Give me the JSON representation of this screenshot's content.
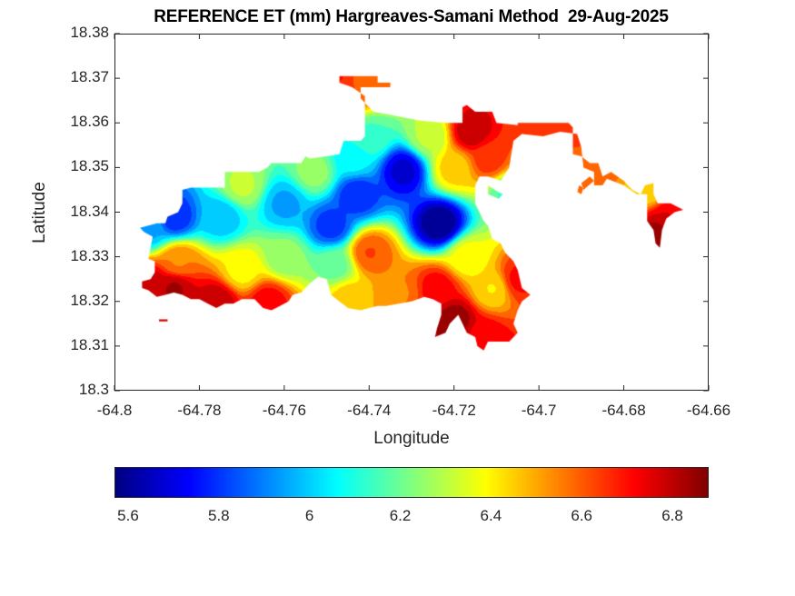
{
  "chart_data": {
    "type": "heatmap",
    "title": "REFERENCE ET (mm) Hargreaves-Samani Method  29-Aug-2025",
    "xlabel": "Longitude",
    "ylabel": "Latitude",
    "xlim": [
      -64.8,
      -64.66
    ],
    "ylim": [
      18.3,
      18.38
    ],
    "xticks": [
      -64.8,
      -64.78,
      -64.76,
      -64.74,
      -64.72,
      -64.7,
      -64.68,
      -64.66
    ],
    "xtick_labels": [
      "-64.8",
      "-64.78",
      "-64.76",
      "-64.74",
      "-64.72",
      "-64.7",
      "-64.68",
      "-64.66"
    ],
    "yticks": [
      18.3,
      18.31,
      18.32,
      18.33,
      18.34,
      18.35,
      18.36,
      18.37,
      18.38
    ],
    "ytick_labels": [
      "18.3",
      "18.31",
      "18.32",
      "18.33",
      "18.34",
      "18.35",
      "18.36",
      "18.37",
      "18.38"
    ],
    "grid": false,
    "colormap": "jet",
    "colorbar": {
      "location": "bottom",
      "clim": [
        5.57,
        6.88
      ],
      "ticks": [
        5.6,
        5.8,
        6.0,
        6.2,
        6.4,
        6.6,
        6.8
      ],
      "tick_labels": [
        "5.6",
        "5.8",
        "6",
        "6.2",
        "6.4",
        "6.6",
        "6.8"
      ]
    },
    "value_field_anchors": [
      {
        "lon": -64.7235,
        "lat": 18.3375,
        "value": 5.58
      },
      {
        "lon": -64.732,
        "lat": 18.3495,
        "value": 5.68
      },
      {
        "lon": -64.743,
        "lat": 18.344,
        "value": 5.78
      },
      {
        "lon": -64.749,
        "lat": 18.337,
        "value": 5.8
      },
      {
        "lon": -64.76,
        "lat": 18.342,
        "value": 5.95
      },
      {
        "lon": -64.775,
        "lat": 18.339,
        "value": 5.98
      },
      {
        "lon": -64.786,
        "lat": 18.339,
        "value": 5.78
      },
      {
        "lon": -64.792,
        "lat": 18.3365,
        "value": 5.95
      },
      {
        "lon": -64.77,
        "lat": 18.346,
        "value": 6.3
      },
      {
        "lon": -64.753,
        "lat": 18.349,
        "value": 6.25
      },
      {
        "lon": -64.74,
        "lat": 18.357,
        "value": 6.15
      },
      {
        "lon": -64.726,
        "lat": 18.357,
        "value": 6.3
      },
      {
        "lon": -64.744,
        "lat": 18.352,
        "value": 6.05
      },
      {
        "lon": -64.74,
        "lat": 18.331,
        "value": 6.62
      },
      {
        "lon": -64.748,
        "lat": 18.328,
        "value": 6.2
      },
      {
        "lon": -64.76,
        "lat": 18.33,
        "value": 6.25
      },
      {
        "lon": -64.77,
        "lat": 18.327,
        "value": 6.4
      },
      {
        "lon": -64.785,
        "lat": 18.329,
        "value": 6.55
      },
      {
        "lon": -64.786,
        "lat": 18.323,
        "value": 6.82
      },
      {
        "lon": -64.776,
        "lat": 18.32,
        "value": 6.8
      },
      {
        "lon": -64.792,
        "lat": 18.324,
        "value": 6.8
      },
      {
        "lon": -64.764,
        "lat": 18.32,
        "value": 6.72
      },
      {
        "lon": -64.745,
        "lat": 18.321,
        "value": 6.45
      },
      {
        "lon": -64.733,
        "lat": 18.322,
        "value": 6.55
      },
      {
        "lon": -64.724,
        "lat": 18.323,
        "value": 6.72
      },
      {
        "lon": -64.72,
        "lat": 18.316,
        "value": 6.85
      },
      {
        "lon": -64.713,
        "lat": 18.312,
        "value": 6.72
      },
      {
        "lon": -64.711,
        "lat": 18.323,
        "value": 6.42
      },
      {
        "lon": -64.705,
        "lat": 18.325,
        "value": 6.7
      },
      {
        "lon": -64.717,
        "lat": 18.33,
        "value": 6.38
      },
      {
        "lon": -64.716,
        "lat": 18.358,
        "value": 6.8
      },
      {
        "lon": -64.712,
        "lat": 18.352,
        "value": 6.65
      },
      {
        "lon": -64.72,
        "lat": 18.35,
        "value": 6.45
      },
      {
        "lon": -64.707,
        "lat": 18.344,
        "value": 6.15
      },
      {
        "lon": -64.7,
        "lat": 18.359,
        "value": 6.65
      },
      {
        "lon": -64.691,
        "lat": 18.358,
        "value": 6.62
      },
      {
        "lon": -64.684,
        "lat": 18.35,
        "value": 6.58
      },
      {
        "lon": -64.677,
        "lat": 18.346,
        "value": 6.48
      },
      {
        "lon": -64.674,
        "lat": 18.345,
        "value": 6.42
      },
      {
        "lon": -64.67,
        "lat": 18.339,
        "value": 6.75
      },
      {
        "lon": -64.666,
        "lat": 18.341,
        "value": 6.72
      },
      {
        "lon": -64.672,
        "lat": 18.336,
        "value": 6.84
      },
      {
        "lon": -64.746,
        "lat": 18.368,
        "value": 6.65
      },
      {
        "lon": -64.742,
        "lat": 18.369,
        "value": 6.6
      },
      {
        "lon": -64.748,
        "lat": 18.37,
        "value": 6.7
      },
      {
        "lon": -64.788,
        "lat": 18.316,
        "value": 6.8
      }
    ],
    "region_outline_lonlat": [
      [
        -64.747,
        18.3705
      ],
      [
        -64.738,
        18.3705
      ],
      [
        -64.738,
        18.369
      ],
      [
        -64.735,
        18.369
      ],
      [
        -64.735,
        18.368
      ],
      [
        -64.742,
        18.368
      ],
      [
        -64.742,
        18.3655
      ],
      [
        -64.739,
        18.3625
      ],
      [
        -64.736,
        18.362
      ],
      [
        -64.728,
        18.3605
      ],
      [
        -64.722,
        18.36
      ],
      [
        -64.718,
        18.36
      ],
      [
        -64.718,
        18.3635
      ],
      [
        -64.717,
        18.364
      ],
      [
        -64.715,
        18.3625
      ],
      [
        -64.711,
        18.3625
      ],
      [
        -64.71,
        18.36
      ],
      [
        -64.705,
        18.3595
      ],
      [
        -64.705,
        18.36
      ],
      [
        -64.699,
        18.36
      ],
      [
        -64.693,
        18.36
      ],
      [
        -64.692,
        18.359
      ],
      [
        -64.692,
        18.353
      ],
      [
        -64.69,
        18.3525
      ],
      [
        -64.688,
        18.351
      ],
      [
        -64.686,
        18.351
      ],
      [
        -64.685,
        18.348
      ],
      [
        -64.683,
        18.349
      ],
      [
        -64.68,
        18.347
      ],
      [
        -64.678,
        18.345
      ],
      [
        -64.676,
        18.344
      ],
      [
        -64.675,
        18.346
      ],
      [
        -64.673,
        18.3465
      ],
      [
        -64.673,
        18.344
      ],
      [
        -64.672,
        18.342
      ],
      [
        -64.669,
        18.342
      ],
      [
        -64.667,
        18.341
      ],
      [
        -64.666,
        18.3405
      ],
      [
        -64.668,
        18.34
      ],
      [
        -64.67,
        18.3385
      ],
      [
        -64.671,
        18.336
      ],
      [
        -64.6715,
        18.332
      ],
      [
        -64.6725,
        18.333
      ],
      [
        -64.673,
        18.336
      ],
      [
        -64.6745,
        18.338
      ],
      [
        -64.6745,
        18.344
      ],
      [
        -64.677,
        18.344
      ],
      [
        -64.68,
        18.346
      ],
      [
        -64.684,
        18.3475
      ],
      [
        -64.685,
        18.346
      ],
      [
        -64.687,
        18.346
      ],
      [
        -64.687,
        18.349
      ],
      [
        -64.6895,
        18.35
      ],
      [
        -64.69,
        18.3545
      ],
      [
        -64.691,
        18.3575
      ],
      [
        -64.695,
        18.358
      ],
      [
        -64.699,
        18.357
      ],
      [
        -64.704,
        18.3575
      ],
      [
        -64.706,
        18.356
      ],
      [
        -64.707,
        18.35
      ],
      [
        -64.709,
        18.347
      ],
      [
        -64.712,
        18.348
      ],
      [
        -64.714,
        18.348
      ],
      [
        -64.715,
        18.346
      ],
      [
        -64.715,
        18.342
      ],
      [
        -64.714,
        18.34
      ],
      [
        -64.713,
        18.338
      ],
      [
        -64.712,
        18.337
      ],
      [
        -64.711,
        18.334
      ],
      [
        -64.709,
        18.333
      ],
      [
        -64.708,
        18.331
      ],
      [
        -64.706,
        18.329
      ],
      [
        -64.705,
        18.327
      ],
      [
        -64.704,
        18.323
      ],
      [
        -64.702,
        18.3215
      ],
      [
        -64.704,
        18.32
      ],
      [
        -64.705,
        18.318
      ],
      [
        -64.706,
        18.315
      ],
      [
        -64.705,
        18.313
      ],
      [
        -64.707,
        18.311
      ],
      [
        -64.712,
        18.311
      ],
      [
        -64.713,
        18.309
      ],
      [
        -64.7145,
        18.31
      ],
      [
        -64.715,
        18.312
      ],
      [
        -64.717,
        18.313
      ],
      [
        -64.718,
        18.315
      ],
      [
        -64.719,
        18.317
      ],
      [
        -64.721,
        18.315
      ],
      [
        -64.722,
        18.313
      ],
      [
        -64.7245,
        18.312
      ],
      [
        -64.724,
        18.314
      ],
      [
        -64.723,
        18.317
      ],
      [
        -64.723,
        18.3195
      ],
      [
        -64.725,
        18.3205
      ],
      [
        -64.727,
        18.321
      ],
      [
        -64.73,
        18.32
      ],
      [
        -64.733,
        18.3195
      ],
      [
        -64.736,
        18.319
      ],
      [
        -64.738,
        18.319
      ],
      [
        -64.74,
        18.3185
      ],
      [
        -64.742,
        18.318
      ],
      [
        -64.745,
        18.3185
      ],
      [
        -64.747,
        18.32
      ],
      [
        -64.749,
        18.3215
      ],
      [
        -64.75,
        18.325
      ],
      [
        -64.752,
        18.3255
      ],
      [
        -64.754,
        18.324
      ],
      [
        -64.756,
        18.322
      ],
      [
        -64.758,
        18.3215
      ],
      [
        -64.759,
        18.32
      ],
      [
        -64.761,
        18.319
      ],
      [
        -64.763,
        18.318
      ],
      [
        -64.765,
        18.3185
      ],
      [
        -64.767,
        18.3205
      ],
      [
        -64.77,
        18.3205
      ],
      [
        -64.772,
        18.3195
      ],
      [
        -64.774,
        18.3195
      ],
      [
        -64.776,
        18.3185
      ],
      [
        -64.778,
        18.3195
      ],
      [
        -64.78,
        18.3205
      ],
      [
        -64.782,
        18.3205
      ],
      [
        -64.784,
        18.3215
      ],
      [
        -64.786,
        18.322
      ],
      [
        -64.788,
        18.3215
      ],
      [
        -64.79,
        18.321
      ],
      [
        -64.792,
        18.3225
      ],
      [
        -64.7935,
        18.323
      ],
      [
        -64.7935,
        18.3245
      ],
      [
        -64.7915,
        18.325
      ],
      [
        -64.7905,
        18.3265
      ],
      [
        -64.7905,
        18.329
      ],
      [
        -64.792,
        18.3295
      ],
      [
        -64.7915,
        18.332
      ],
      [
        -64.791,
        18.3345
      ],
      [
        -64.793,
        18.3355
      ],
      [
        -64.794,
        18.3365
      ],
      [
        -64.79,
        18.3375
      ],
      [
        -64.788,
        18.3375
      ],
      [
        -64.7875,
        18.339
      ],
      [
        -64.785,
        18.34
      ],
      [
        -64.784,
        18.342
      ],
      [
        -64.784,
        18.345
      ],
      [
        -64.782,
        18.3455
      ],
      [
        -64.778,
        18.3455
      ],
      [
        -64.774,
        18.3455
      ],
      [
        -64.774,
        18.349
      ],
      [
        -64.77,
        18.349
      ],
      [
        -64.766,
        18.349
      ],
      [
        -64.764,
        18.35
      ],
      [
        -64.763,
        18.351
      ],
      [
        -64.758,
        18.351
      ],
      [
        -64.756,
        18.351
      ],
      [
        -64.755,
        18.3525
      ],
      [
        -64.754,
        18.352
      ],
      [
        -64.75,
        18.3525
      ],
      [
        -64.747,
        18.353
      ],
      [
        -64.746,
        18.356
      ],
      [
        -64.742,
        18.356
      ],
      [
        -64.741,
        18.357
      ],
      [
        -64.741,
        18.366
      ],
      [
        -64.744,
        18.368
      ],
      [
        -64.747,
        18.369
      ]
    ],
    "outlying_fragments_lonlat": [
      [
        [
          -64.7895,
          18.316
        ],
        [
          -64.7875,
          18.316
        ],
        [
          -64.7875,
          18.3155
        ],
        [
          -64.7895,
          18.3155
        ]
      ],
      [
        [
          -64.712,
          18.346
        ],
        [
          -64.7095,
          18.3445
        ],
        [
          -64.7085,
          18.344
        ],
        [
          -64.7095,
          18.343
        ],
        [
          -64.712,
          18.344
        ]
      ],
      [
        [
          -64.69,
          18.3465
        ],
        [
          -64.688,
          18.348
        ],
        [
          -64.687,
          18.347
        ],
        [
          -64.6895,
          18.345
        ]
      ],
      [
        [
          -64.691,
          18.3445
        ],
        [
          -64.69,
          18.344
        ],
        [
          -64.6895,
          18.3455
        ],
        [
          -64.6905,
          18.346
        ]
      ]
    ]
  }
}
